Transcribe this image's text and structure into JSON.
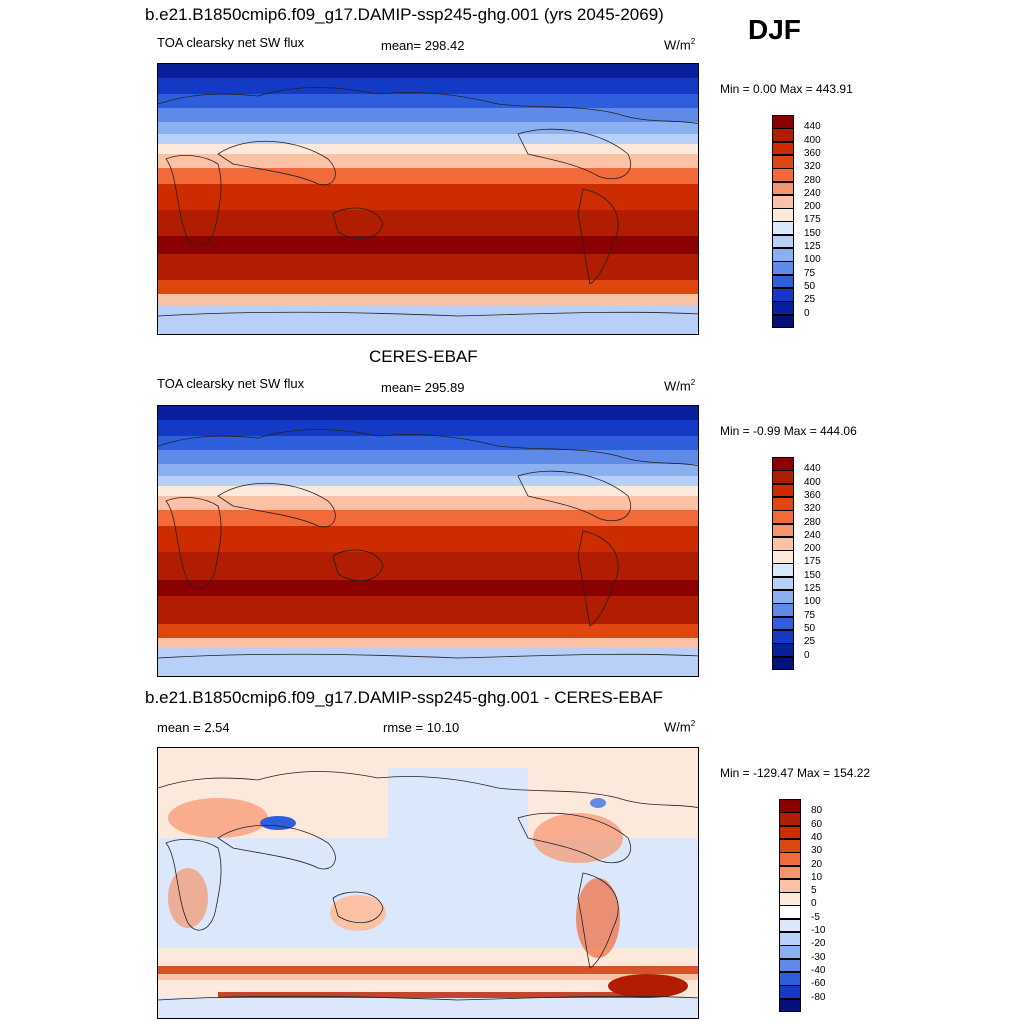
{
  "season": "DJF",
  "panels": [
    {
      "title": "b.e21.B1850cmip6.f09_g17.DAMIP-ssp245-ghg.001 (yrs 2045-2069)",
      "left": "TOA clearsky net SW flux",
      "center": "mean= 298.42",
      "units": "W/m",
      "units_sup": "2",
      "minmax": "Min =   0.00 Max = 443.91",
      "colorbar": {
        "labels": [
          "440",
          "400",
          "360",
          "320",
          "280",
          "240",
          "200",
          "175",
          "150",
          "125",
          "100",
          "75",
          "50",
          "25",
          "0"
        ],
        "colors": [
          "#8b0000",
          "#b01d00",
          "#cc2c00",
          "#e04710",
          "#f26a3a",
          "#f7946c",
          "#fbc1a4",
          "#fde8dc",
          "#dbe7fb",
          "#b8cff7",
          "#8bb0f2",
          "#5f8ae8",
          "#2f5edc",
          "#1439c4",
          "#0a1f9c",
          "#05117a"
        ]
      }
    },
    {
      "title": "CERES-EBAF",
      "left": "TOA clearsky net SW flux",
      "center": "mean= 295.89",
      "units": "W/m",
      "units_sup": "2",
      "minmax": "Min =  -0.99 Max = 444.06",
      "colorbar": {
        "labels": [
          "440",
          "400",
          "360",
          "320",
          "280",
          "240",
          "200",
          "175",
          "150",
          "125",
          "100",
          "75",
          "50",
          "25",
          "0"
        ],
        "colors": [
          "#8b0000",
          "#b01d00",
          "#cc2c00",
          "#e04710",
          "#f26a3a",
          "#f7946c",
          "#fbc1a4",
          "#fde8dc",
          "#dbe7fb",
          "#b8cff7",
          "#8bb0f2",
          "#5f8ae8",
          "#2f5edc",
          "#1439c4",
          "#0a1f9c",
          "#05117a"
        ]
      }
    },
    {
      "title": "b.e21.B1850cmip6.f09_g17.DAMIP-ssp245-ghg.001 - CERES-EBAF",
      "left": "mean =   2.54",
      "center": "rmse =  10.10",
      "units": "W/m",
      "units_sup": "2",
      "minmax": "Min = -129.47 Max = 154.22",
      "colorbar": {
        "labels": [
          "80",
          "60",
          "40",
          "30",
          "20",
          "10",
          "5",
          "0",
          "-5",
          "-10",
          "-20",
          "-30",
          "-40",
          "-60",
          "-80"
        ],
        "colors": [
          "#8b0000",
          "#b01d00",
          "#cc2c00",
          "#e04710",
          "#f26a3a",
          "#f7946c",
          "#fbc1a4",
          "#fde8dc",
          "#ffffff",
          "#dbe7fb",
          "#b8cff7",
          "#8bb0f2",
          "#5f8ae8",
          "#2f5edc",
          "#1439c4",
          "#05117a"
        ]
      }
    }
  ]
}
